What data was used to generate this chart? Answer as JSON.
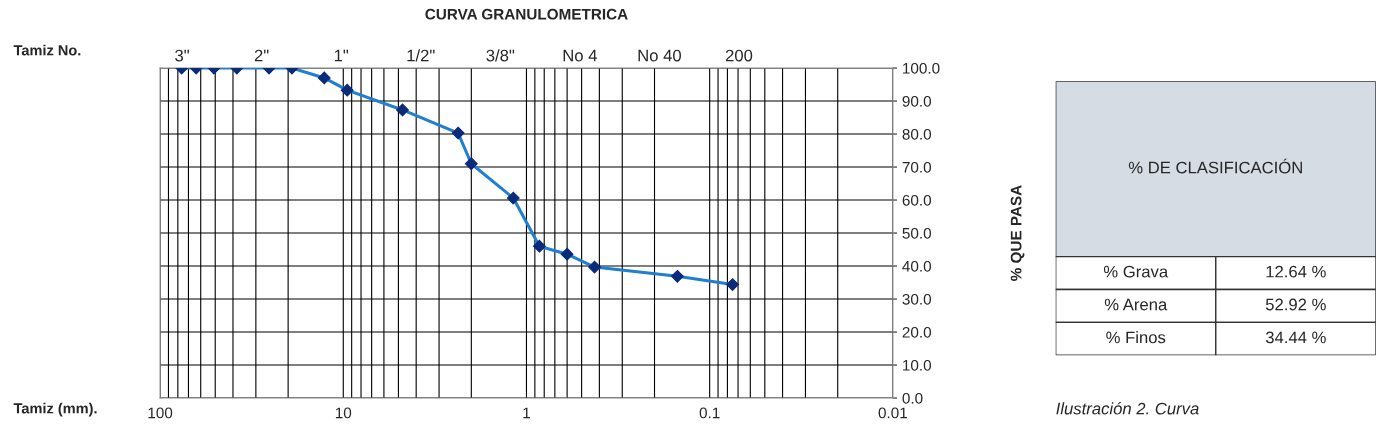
{
  "chart_data": [
    {
      "type": "line",
      "title": "CURVA GRANULOMETRICA",
      "xlabel": "Tamiz (mm).",
      "x2label": "Tamiz No.",
      "ylabel": "% QUE PASA",
      "x": [
        76.2,
        63.5,
        50.8,
        38.1,
        25.4,
        19.05,
        12.7,
        9.525,
        4.75,
        2.36,
        2.0,
        1.18,
        0.85,
        0.6,
        0.425,
        0.15,
        0.075
      ],
      "series": [
        {
          "color": "#1f7fd0",
          "values": [
            100,
            100,
            100,
            100,
            100,
            100,
            97,
            93.3,
            87.3,
            80.3,
            71,
            60.6,
            46,
            43.6,
            39.7,
            36.9,
            34.4
          ]
        }
      ],
      "log": "x",
      "xlim": [
        100,
        0.01
      ],
      "xticks": [
        100,
        10,
        1,
        0.1,
        0.01
      ],
      "annotations": [
        "3\"",
        "2\"",
        "1\"",
        "1/2\"",
        "3/8\"",
        "No 4",
        "No 40",
        "200"
      ],
      "ylim": [
        0,
        100
      ],
      "yticks": [
        {
          "value": 0,
          "label": "0.0"
        },
        {
          "value": 10,
          "label": "10.0"
        },
        {
          "value": 20,
          "label": "20.0"
        },
        {
          "value": 30,
          "label": "30.0"
        },
        {
          "value": 40,
          "label": "40.0"
        },
        {
          "value": 50,
          "label": "50.0"
        },
        {
          "value": 60,
          "label": "60.0"
        },
        {
          "value": 70,
          "label": "70.0"
        },
        {
          "value": 80,
          "label": "80.0"
        },
        {
          "value": 90,
          "label": "90.0"
        },
        {
          "value": 100,
          "label": "100.0"
        }
      ],
      "grid": true,
      "marker": "diamond",
      "line_style": "solid",
      "legend": false
    },
    {
      "type": "other",
      "title": "% DE CLASIFICACIÓN",
      "categories": [
        "% Grava",
        "% Arena",
        "% Finos"
      ],
      "value_labels": [
        "12.64 %",
        "52.92 %",
        "34.44 %"
      ],
      "annotations": [
        "Ilustración 2. Curva"
      ]
    }
  ]
}
